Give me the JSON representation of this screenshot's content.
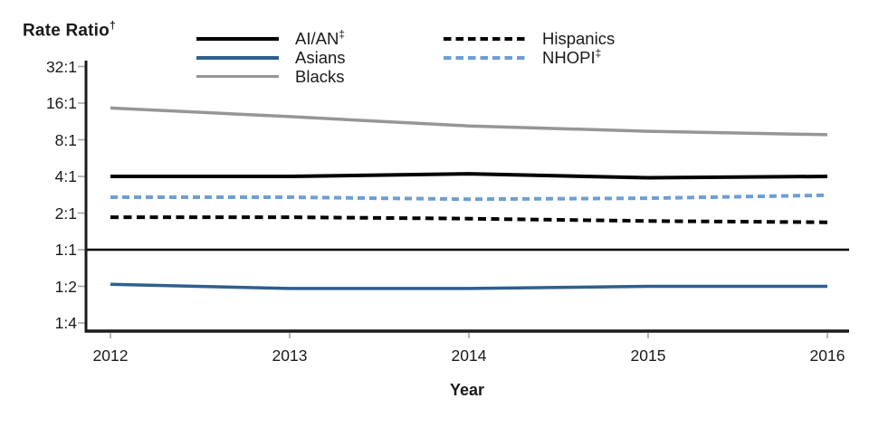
{
  "title": {
    "text": "Rate Ratio",
    "sup": "†"
  },
  "legend": {
    "items": [
      {
        "label": "AI/AN",
        "sup": "‡"
      },
      {
        "label": "Asians",
        "sup": ""
      },
      {
        "label": "Blacks",
        "sup": ""
      },
      {
        "label": "Hispanics",
        "sup": ""
      },
      {
        "label": "NHOPI",
        "sup": "‡"
      }
    ]
  },
  "xaxis": {
    "label": "Year",
    "ticks": [
      "2012",
      "2013",
      "2014",
      "2015",
      "2016"
    ]
  },
  "yaxis": {
    "ticks": [
      "32:1",
      "16:1",
      "8:1",
      "4:1",
      "2:1",
      "1:1",
      "1:2",
      "1:4"
    ],
    "values": [
      32,
      16,
      8,
      4,
      2,
      1,
      0.5,
      0.25
    ]
  },
  "colors": {
    "black": "#000000",
    "asians_blue": "#2e5f8e",
    "blacks_gray": "#969696",
    "nhopi_blue": "#6c9fd4",
    "tick_gray": "#a6a6a6",
    "text": "#1a1a1a"
  },
  "chart_data": {
    "type": "line",
    "title": "Rate Ratio†",
    "xlabel": "Year",
    "yscale": "log2",
    "ylim": [
      0.25,
      32
    ],
    "grid": false,
    "legend_position": "top",
    "reference_line": 1,
    "x": [
      2012,
      2013,
      2014,
      2015,
      2016
    ],
    "series": [
      {
        "name": "AI/AN‡",
        "style": "solid",
        "color": "#000000",
        "values": [
          4.0,
          4.0,
          4.2,
          3.9,
          4.0
        ]
      },
      {
        "name": "Asians",
        "style": "solid",
        "color": "#2e5f8e",
        "values": [
          0.52,
          0.48,
          0.48,
          0.5,
          0.5
        ]
      },
      {
        "name": "Blacks",
        "style": "solid",
        "color": "#969696",
        "values": [
          14.6,
          12.4,
          10.4,
          9.4,
          8.8
        ]
      },
      {
        "name": "Hispanics",
        "style": "dashed",
        "color": "#000000",
        "values": [
          1.85,
          1.85,
          1.8,
          1.72,
          1.68
        ]
      },
      {
        "name": "NHOPI‡",
        "style": "dashed",
        "color": "#6c9fd4",
        "values": [
          2.7,
          2.7,
          2.6,
          2.65,
          2.8
        ]
      }
    ]
  }
}
